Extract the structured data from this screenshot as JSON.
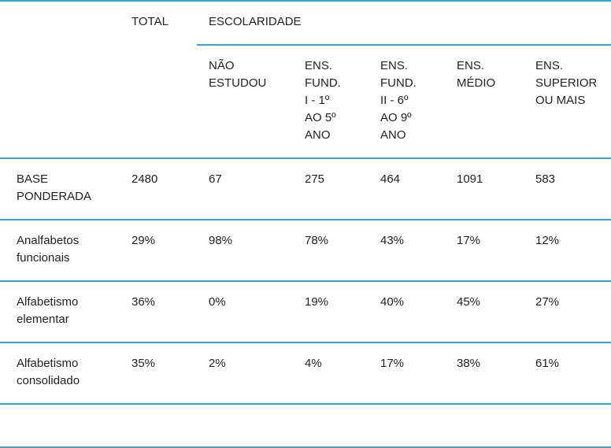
{
  "table": {
    "header": {
      "total": "TOTAL",
      "group": "ESCOLARIDADE",
      "sub": [
        "NÃO\nESTUDOU",
        "ENS.\nFUND.\nI - 1º\nAO 5º\nANO",
        "ENS.\nFUND.\nII - 6º\nAO 9º\nANO",
        "ENS.\nMÉDIO",
        "ENS.\nSUPERIOR\nOU MAIS"
      ]
    },
    "rows": [
      {
        "label": "BASE\nPONDERADA",
        "total": "2480",
        "values": [
          "67",
          "275",
          "464",
          "1091",
          "583"
        ]
      },
      {
        "label": "Analfabetos\nfuncionais",
        "total": "29%",
        "values": [
          "98%",
          "78%",
          "43%",
          "17%",
          "12%"
        ]
      },
      {
        "label": "Alfabetismo\nelementar",
        "total": "36%",
        "values": [
          "0%",
          "19%",
          "40%",
          "45%",
          "27%"
        ]
      },
      {
        "label": "Alfabetismo\nconsolidado",
        "total": "35%",
        "values": [
          "2%",
          "4%",
          "17%",
          "38%",
          "61%"
        ]
      }
    ]
  },
  "colors": {
    "rule": "#2aa6e0",
    "text": "#222222"
  }
}
